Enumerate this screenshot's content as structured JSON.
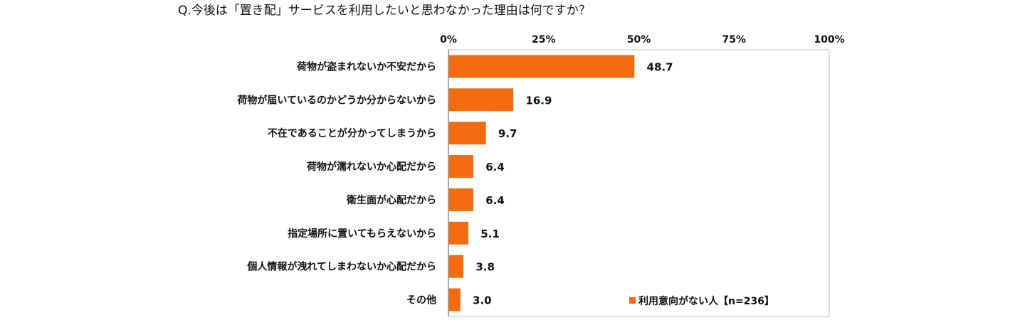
{
  "chart_data": {
    "type": "bar",
    "orientation": "horizontal",
    "title": "Q.今後は「置き配」サービスを利用したいと思わなかった理由は何ですか？",
    "xlabel": "",
    "ylabel": "",
    "xlim": [
      0,
      100
    ],
    "ticks": [
      0,
      25,
      50,
      75,
      100
    ],
    "tick_labels": [
      "0%",
      "25%",
      "50%",
      "75%",
      "100%"
    ],
    "grid": false,
    "legend_position": "bottom-right",
    "categories": [
      "荷物が盗まれないか不安だから",
      "荷物が届いているのかどうか分からないから",
      "不在であることが分かってしまうから",
      "荷物が濡れないか心配だから",
      "衛生面が心配だから",
      "指定場所に置いてもらえないから",
      "個人情報が洩れてしまわないか心配だから",
      "その他"
    ],
    "series": [
      {
        "name": "利用意向がない人【n=236】",
        "color": "#f26b0f",
        "values": [
          48.7,
          16.9,
          9.7,
          6.4,
          6.4,
          5.1,
          3.8,
          3.0
        ],
        "labels": [
          "48.7",
          "16.9",
          "9.7",
          "6.4",
          "6.4",
          "5.1",
          "3.8",
          "3.0"
        ]
      }
    ]
  }
}
